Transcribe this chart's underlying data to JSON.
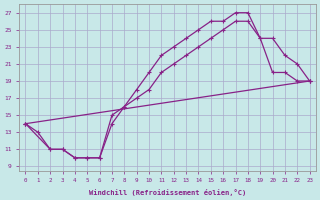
{
  "xlabel": "Windchill (Refroidissement éolien,°C)",
  "bg_color": "#c8e8e8",
  "line_color": "#882288",
  "grid_color": "#aaaacc",
  "xticks": [
    0,
    1,
    2,
    3,
    4,
    5,
    6,
    7,
    8,
    9,
    10,
    11,
    12,
    13,
    14,
    15,
    16,
    17,
    18,
    19,
    20,
    21,
    22,
    23
  ],
  "yticks": [
    9,
    11,
    13,
    15,
    17,
    19,
    21,
    23,
    25,
    27
  ],
  "xlim": [
    -0.5,
    23.5
  ],
  "ylim": [
    8.5,
    28.0
  ],
  "curve1_x": [
    0,
    1,
    2,
    3,
    4,
    5,
    6,
    7,
    8,
    9,
    10,
    11,
    12,
    13,
    14,
    15,
    16,
    17,
    18,
    19,
    20,
    21,
    22,
    23
  ],
  "curve1_y": [
    14,
    13,
    11,
    11,
    10,
    10,
    10,
    14,
    16,
    18,
    20,
    22,
    23,
    24,
    25,
    26,
    26,
    27,
    27,
    24,
    20,
    20,
    19,
    19
  ],
  "curve2_x": [
    0,
    2,
    3,
    4,
    5,
    6,
    7,
    8,
    9,
    10,
    11,
    12,
    13,
    14,
    15,
    16,
    17,
    18,
    19,
    20,
    21,
    22,
    23
  ],
  "curve2_y": [
    14,
    11,
    11,
    10,
    10,
    10,
    15,
    16,
    17,
    18,
    20,
    21,
    22,
    23,
    24,
    25,
    26,
    26,
    24,
    24,
    22,
    21,
    19
  ],
  "curve3_x": [
    0,
    23
  ],
  "curve3_y": [
    14,
    19
  ]
}
